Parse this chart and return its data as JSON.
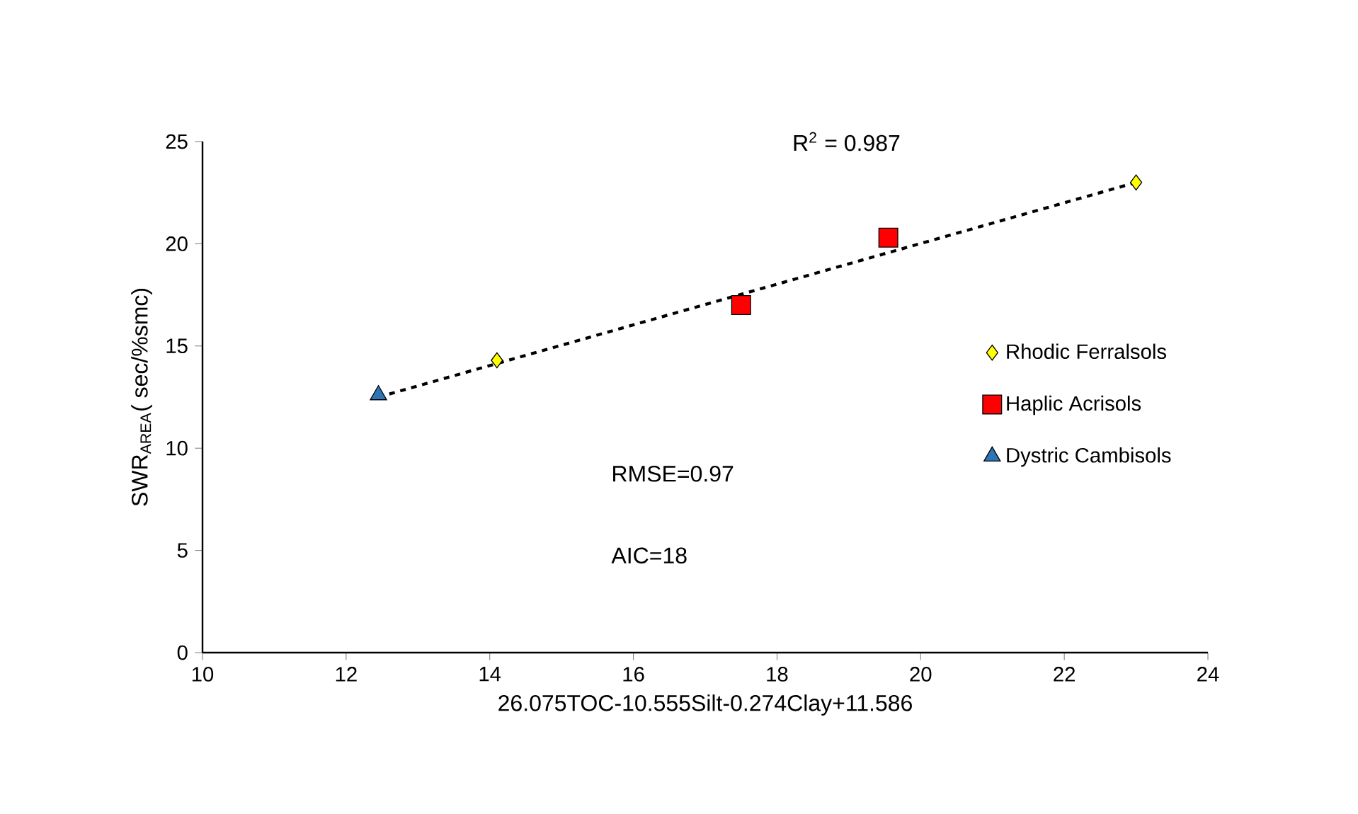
{
  "chart_data": {
    "type": "scatter",
    "xlabel": "26.075TOC-10.555Silt-0.274Clay+11.586",
    "ylabel": "SWR$_{AREA}$( sec/%smc)",
    "xlim": [
      10,
      24
    ],
    "ylim": [
      0,
      25
    ],
    "xticks": [
      10,
      12,
      14,
      16,
      18,
      20,
      22,
      24
    ],
    "yticks": [
      0,
      5,
      10,
      15,
      20,
      25
    ],
    "grid": false,
    "legend": "right",
    "annotations": [
      "R$^{2}$ = 0.987",
      "RMSE=0.97",
      "AIC=18"
    ],
    "series": [
      {
        "name": "Rhodic Ferralsols",
        "color": "#ffff00",
        "marker": "diamond",
        "x": [
          14.1,
          23.0
        ],
        "values": [
          14.3,
          23.0
        ]
      },
      {
        "name": "Haplic Acrisols",
        "color": "#ff0000",
        "marker": "square",
        "x": [
          17.5,
          19.55
        ],
        "values": [
          17.0,
          20.3
        ]
      },
      {
        "name": "Dystric Cambisols",
        "color": "#2e75b6",
        "marker": "triangle",
        "x": [
          12.45
        ],
        "values": [
          12.6
        ]
      },
      {
        "type": "line",
        "color": "#000000",
        "marker": "none",
        "line_style": "dashed",
        "x": [
          12.45,
          23.0
        ],
        "values": [
          12.5,
          23.0
        ]
      }
    ]
  }
}
